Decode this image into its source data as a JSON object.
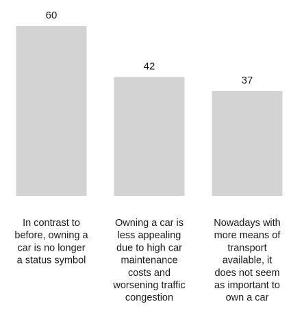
{
  "chart_data": {
    "type": "bar",
    "title": "",
    "xlabel": "",
    "ylabel": "",
    "ylim": [
      0,
      60
    ],
    "grid": false,
    "legend": "none",
    "bar_color": "#d3d3d3",
    "text_color": "#1a1a1a",
    "categories": [
      [
        "In contrast to",
        "before, owning a",
        "car is no longer",
        "a status symbol"
      ],
      [
        "Owning a car is",
        "less appealing",
        "due to high car",
        "maintenance",
        "costs and",
        "worsening traffic",
        "congestion"
      ],
      [
        "Nowadays with",
        "more means of",
        "transport",
        "available, it",
        "does not seem",
        "as important to",
        "own a car"
      ]
    ],
    "values": [
      60,
      42,
      37
    ],
    "data_labels": [
      "60",
      "42",
      "37"
    ]
  }
}
